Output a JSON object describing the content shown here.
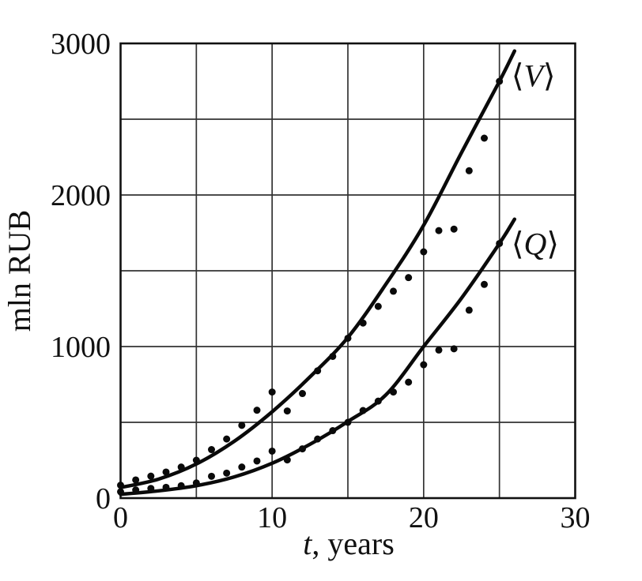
{
  "figure": {
    "background": "#ffffff",
    "ink_color": "#111111",
    "grid_color": "#333333",
    "curve_color": "#0a0a0a",
    "dot_color": "#0a0a0a"
  },
  "chart_data": {
    "type": "scatter",
    "title": "",
    "xlabel_italic": "t",
    "xlabel_rest": ", years",
    "ylabel": "mln RUB",
    "xlim": [
      0,
      30
    ],
    "ylim": [
      0,
      3000
    ],
    "x_ticks": [
      0,
      10,
      20,
      30
    ],
    "y_ticks": [
      0,
      1000,
      2000,
      3000
    ],
    "x_gridline_step": 5,
    "y_gridline_step": 500,
    "grid": true,
    "legend_position": "curve-end-labels",
    "marker": {
      "shape": "filled-circle",
      "radius_px": 4.5
    },
    "series": [
      {
        "name": "V",
        "label_open": "⟨",
        "label_letter": "V",
        "label_close": "⟩",
        "points": [
          [
            0,
            85
          ],
          [
            1,
            120
          ],
          [
            2,
            145
          ],
          [
            3,
            172
          ],
          [
            4,
            205
          ],
          [
            5,
            250
          ],
          [
            6,
            320
          ],
          [
            7,
            390
          ],
          [
            8,
            480
          ],
          [
            9,
            580
          ],
          [
            10,
            700
          ],
          [
            11,
            575
          ],
          [
            12,
            690
          ],
          [
            13,
            840
          ],
          [
            14,
            935
          ],
          [
            15,
            1055
          ],
          [
            16,
            1155
          ],
          [
            17,
            1265
          ],
          [
            18,
            1365
          ],
          [
            19,
            1455
          ],
          [
            20,
            1625
          ],
          [
            21,
            1765
          ],
          [
            22,
            1775
          ],
          [
            23,
            2160
          ],
          [
            24,
            2375
          ],
          [
            25,
            2750
          ]
        ],
        "fit_curve": [
          [
            0,
            70
          ],
          [
            2.5,
            125
          ],
          [
            5,
            225
          ],
          [
            7.5,
            375
          ],
          [
            10,
            570
          ],
          [
            12.5,
            800
          ],
          [
            15,
            1060
          ],
          [
            17.5,
            1410
          ],
          [
            20,
            1800
          ],
          [
            22.5,
            2280
          ],
          [
            25,
            2750
          ],
          [
            26,
            2950
          ]
        ]
      },
      {
        "name": "Q",
        "label_open": "⟨",
        "label_letter": "Q",
        "label_close": "⟩",
        "points": [
          [
            0,
            42
          ],
          [
            1,
            54
          ],
          [
            2,
            64
          ],
          [
            3,
            71
          ],
          [
            4,
            82
          ],
          [
            5,
            100
          ],
          [
            6,
            144
          ],
          [
            7,
            165
          ],
          [
            8,
            205
          ],
          [
            9,
            245
          ],
          [
            10,
            310
          ],
          [
            11,
            252
          ],
          [
            12,
            325
          ],
          [
            13,
            390
          ],
          [
            14,
            445
          ],
          [
            15,
            500
          ],
          [
            16,
            578
          ],
          [
            17,
            640
          ],
          [
            18,
            700
          ],
          [
            19,
            765
          ],
          [
            20,
            880
          ],
          [
            21,
            977
          ],
          [
            22,
            985
          ],
          [
            23,
            1240
          ],
          [
            24,
            1410
          ],
          [
            25,
            1680
          ]
        ],
        "fit_curve": [
          [
            0,
            25
          ],
          [
            2.5,
            48
          ],
          [
            5,
            82
          ],
          [
            7.5,
            140
          ],
          [
            10,
            230
          ],
          [
            12.5,
            355
          ],
          [
            15,
            505
          ],
          [
            17.5,
            680
          ],
          [
            20,
            1000
          ],
          [
            22.5,
            1320
          ],
          [
            25,
            1680
          ],
          [
            26,
            1840
          ]
        ]
      }
    ]
  }
}
